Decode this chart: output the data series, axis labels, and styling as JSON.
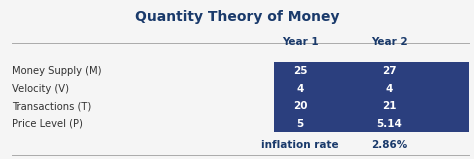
{
  "title": "Quantity Theory of Money",
  "title_color": "#1a3a6b",
  "title_fontsize": 10,
  "col_headers": [
    "Year 1",
    "Year 2"
  ],
  "row_labels": [
    "Money Supply (M)",
    "Velocity (V)",
    "Transactions (T)",
    "Price Level (P)"
  ],
  "year1_values": [
    "25",
    "4",
    "20",
    "5"
  ],
  "year2_values": [
    "27",
    "4",
    "21",
    "5.14"
  ],
  "inflation_label": "inflation rate",
  "inflation_value": "2.86%",
  "bg_color": "#2b3f7e",
  "text_light": "#ffffff",
  "text_dark": "#1a3a6b",
  "text_label_color": "#333333",
  "header_line_color": "#aaaaaa",
  "bottom_line_color": "#aaaaaa",
  "fig_bg": "#f5f5f5"
}
